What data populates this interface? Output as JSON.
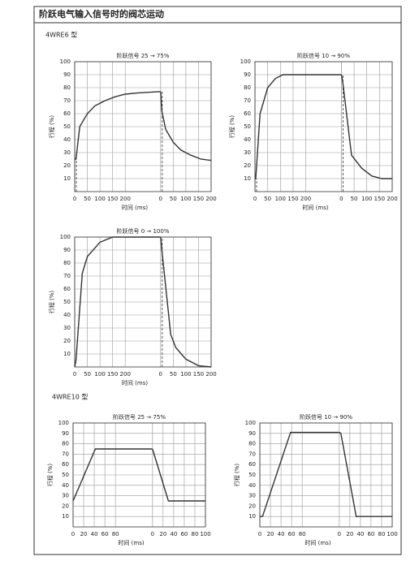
{
  "header": {
    "title": "阶跃电气输入信号时的阀芯运动"
  },
  "sections": [
    "4WRE6 型",
    "4WRE10 型"
  ],
  "chart_data": [
    {
      "type": "line",
      "title": "阶跃信号 25 → 75%",
      "ylabel": "行程 (%)",
      "xlabel": "时间 (ms)",
      "ylim": [
        0,
        100
      ],
      "yticks": [
        10,
        20,
        30,
        40,
        50,
        60,
        70,
        80,
        90,
        100
      ],
      "step_marker": true,
      "color": "#333333",
      "panels": [
        {
          "xlim": [
            0,
            340
          ],
          "xticks": [
            0,
            50,
            100,
            150,
            200
          ],
          "x": [
            0,
            5,
            20,
            50,
            80,
            120,
            160,
            200,
            250,
            340
          ],
          "values": [
            25,
            25,
            50,
            60,
            66,
            70,
            73,
            75,
            76,
            77
          ]
        },
        {
          "xlim": [
            0,
            200
          ],
          "xticks": [
            0,
            50,
            100,
            150,
            200
          ],
          "x": [
            0,
            5,
            20,
            50,
            80,
            120,
            160,
            200
          ],
          "values": [
            77,
            62,
            48,
            38,
            32,
            28,
            25,
            24
          ]
        }
      ]
    },
    {
      "type": "line",
      "title": "阶跃信号 10 → 90%",
      "ylabel": "行程 (%)",
      "xlabel": "时间 (ms)",
      "ylim": [
        0,
        100
      ],
      "yticks": [
        10,
        20,
        30,
        40,
        50,
        60,
        70,
        80,
        90,
        100
      ],
      "step_marker": true,
      "color": "#333333",
      "panels": [
        {
          "xlim": [
            0,
            340
          ],
          "xticks": [
            0,
            50,
            100,
            150,
            200
          ],
          "x": [
            0,
            3,
            20,
            50,
            80,
            110,
            340
          ],
          "values": [
            10,
            10,
            60,
            80,
            87,
            90,
            90
          ]
        },
        {
          "xlim": [
            0,
            200
          ],
          "xticks": [
            0,
            50,
            100,
            150,
            200
          ],
          "x": [
            0,
            5,
            40,
            80,
            120,
            160,
            200
          ],
          "values": [
            90,
            85,
            28,
            18,
            12,
            10,
            10
          ]
        }
      ]
    },
    {
      "type": "line",
      "title": "阶跃信号 0 → 100%",
      "ylabel": "行程 (%)",
      "xlabel": "时间 (ms)",
      "ylim": [
        0,
        100
      ],
      "yticks": [
        10,
        20,
        30,
        40,
        50,
        60,
        70,
        80,
        90,
        100
      ],
      "step_marker": true,
      "color": "#333333",
      "panels": [
        {
          "xlim": [
            0,
            340
          ],
          "xticks": [
            0,
            50,
            100,
            150,
            200
          ],
          "x": [
            0,
            5,
            30,
            50,
            100,
            150,
            340
          ],
          "values": [
            0,
            5,
            72,
            85,
            96,
            100,
            100
          ]
        },
        {
          "xlim": [
            0,
            200
          ],
          "xticks": [
            0,
            50,
            100,
            150,
            200
          ],
          "x": [
            0,
            5,
            40,
            60,
            100,
            150,
            200
          ],
          "values": [
            100,
            90,
            25,
            15,
            6,
            1,
            0
          ]
        }
      ]
    },
    {
      "type": "line",
      "title": "阶跃信号 25 → 75%",
      "ylabel": "行程 (%)",
      "xlabel": "时间 (ms)",
      "ylim": [
        0,
        100
      ],
      "yticks": [
        10,
        20,
        30,
        40,
        50,
        60,
        70,
        80,
        90,
        100
      ],
      "step_marker": false,
      "color": "#333333",
      "panels": [
        {
          "xlim": [
            0,
            150
          ],
          "xticks": [
            0,
            20,
            40,
            60,
            80
          ],
          "x": [
            0,
            42,
            150
          ],
          "values": [
            25,
            75,
            75
          ]
        },
        {
          "xlim": [
            0,
            100
          ],
          "xticks": [
            0,
            20,
            40,
            60,
            80,
            100
          ],
          "x": [
            0,
            30,
            100
          ],
          "values": [
            75,
            25,
            25
          ]
        }
      ]
    },
    {
      "type": "line",
      "title": "阶跃信号 10 → 90%",
      "ylabel": "行程 (%)",
      "xlabel": "时间 (ms)",
      "ylim": [
        0,
        100
      ],
      "yticks": [
        10,
        20,
        30,
        40,
        50,
        60,
        70,
        80,
        90,
        100
      ],
      "step_marker": false,
      "color": "#333333",
      "panels": [
        {
          "xlim": [
            0,
            150
          ],
          "xticks": [
            0,
            20,
            40,
            60,
            80
          ],
          "x": [
            0,
            5,
            58,
            150
          ],
          "values": [
            10,
            10,
            91,
            91
          ]
        },
        {
          "xlim": [
            0,
            100
          ],
          "xticks": [
            0,
            20,
            40,
            60,
            80,
            100
          ],
          "x": [
            0,
            3,
            32,
            100
          ],
          "values": [
            91,
            90,
            10,
            10
          ]
        }
      ]
    }
  ]
}
